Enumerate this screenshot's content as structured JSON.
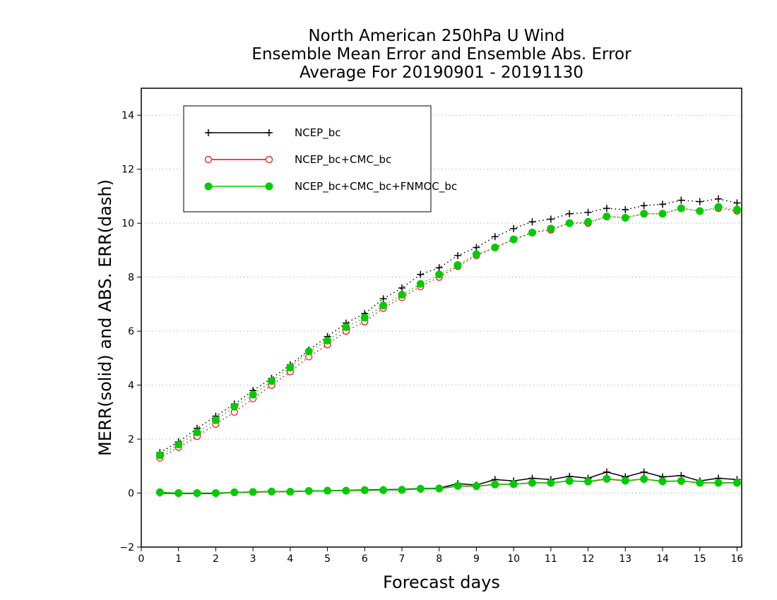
{
  "chart_data": {
    "type": "line",
    "title_lines": [
      "North American 250hPa U Wind",
      "Ensemble Mean Error and Ensemble Abs. Error",
      "Average For 20190901 - 20191130"
    ],
    "xlabel": "Forecast days",
    "ylabel": "MERR(solid) and ABS. ERR(dash)",
    "xlim": [
      0,
      16.125
    ],
    "ylim": [
      -2,
      15
    ],
    "x_ticks": [
      0,
      1,
      2,
      3,
      4,
      5,
      6,
      7,
      8,
      9,
      10,
      11,
      12,
      13,
      14,
      15,
      16
    ],
    "y_ticks": [
      -2,
      0,
      2,
      4,
      6,
      8,
      10,
      12,
      14
    ],
    "grid": "dotted horizontal",
    "legend_position": "top-left",
    "x": [
      0.5,
      1.0,
      1.5,
      2.0,
      2.5,
      3.0,
      3.5,
      4.0,
      4.5,
      5.0,
      5.5,
      6.0,
      6.5,
      7.0,
      7.5,
      8.0,
      8.5,
      9.0,
      9.5,
      10.0,
      10.5,
      11.0,
      11.5,
      12.0,
      12.5,
      13.0,
      13.5,
      14.0,
      14.5,
      15.0,
      15.5,
      16.0
    ],
    "series": [
      {
        "name": "NCEP_bc",
        "color": "#000000",
        "marker": "plus",
        "abs_err": [
          1.5,
          1.9,
          2.4,
          2.85,
          3.3,
          3.8,
          4.25,
          4.75,
          5.3,
          5.8,
          6.3,
          6.65,
          7.2,
          7.6,
          8.1,
          8.35,
          8.8,
          9.1,
          9.5,
          9.8,
          10.05,
          10.15,
          10.35,
          10.4,
          10.55,
          10.5,
          10.65,
          10.7,
          10.85,
          10.8,
          10.9,
          10.75
        ],
        "mean_err": [
          0.0,
          -0.02,
          -0.02,
          -0.02,
          0.03,
          0.04,
          0.06,
          0.06,
          0.08,
          0.09,
          0.1,
          0.12,
          0.13,
          0.14,
          0.17,
          0.18,
          0.35,
          0.3,
          0.5,
          0.45,
          0.55,
          0.5,
          0.62,
          0.55,
          0.78,
          0.6,
          0.78,
          0.6,
          0.65,
          0.45,
          0.55,
          0.5
        ]
      },
      {
        "name": "NCEP_bc+CMC_bc",
        "color": "#ff0000",
        "marker": "open-circle",
        "abs_err": [
          1.3,
          1.7,
          2.1,
          2.55,
          3.0,
          3.5,
          4.0,
          4.5,
          5.05,
          5.5,
          6.0,
          6.35,
          6.85,
          7.25,
          7.65,
          8.0,
          8.4,
          8.8,
          9.1,
          9.4,
          9.65,
          9.75,
          10.0,
          10.0,
          10.25,
          10.2,
          10.35,
          10.35,
          10.55,
          10.45,
          10.55,
          10.45
        ],
        "mean_err": [
          0.02,
          -0.01,
          -0.01,
          0.0,
          0.02,
          0.03,
          0.05,
          0.05,
          0.07,
          0.08,
          0.09,
          0.1,
          0.11,
          0.12,
          0.15,
          0.16,
          0.26,
          0.25,
          0.32,
          0.33,
          0.38,
          0.38,
          0.45,
          0.42,
          0.52,
          0.45,
          0.52,
          0.43,
          0.45,
          0.38,
          0.38,
          0.38
        ]
      },
      {
        "name": "NCEP_bc+CMC_bc+FNMOC_bc",
        "color": "#00cc00",
        "marker": "filled-circle",
        "abs_err": [
          1.4,
          1.8,
          2.25,
          2.7,
          3.2,
          3.65,
          4.15,
          4.65,
          5.25,
          5.65,
          6.15,
          6.5,
          6.95,
          7.35,
          7.75,
          8.1,
          8.45,
          8.85,
          9.1,
          9.4,
          9.65,
          9.8,
          10.0,
          10.05,
          10.25,
          10.2,
          10.35,
          10.35,
          10.55,
          10.45,
          10.6,
          10.5
        ],
        "mean_err": [
          0.03,
          0.0,
          0.0,
          0.0,
          0.03,
          0.04,
          0.06,
          0.05,
          0.08,
          0.09,
          0.09,
          0.11,
          0.11,
          0.12,
          0.16,
          0.17,
          0.27,
          0.26,
          0.32,
          0.33,
          0.38,
          0.38,
          0.45,
          0.43,
          0.53,
          0.46,
          0.52,
          0.44,
          0.45,
          0.38,
          0.38,
          0.38
        ]
      }
    ]
  }
}
